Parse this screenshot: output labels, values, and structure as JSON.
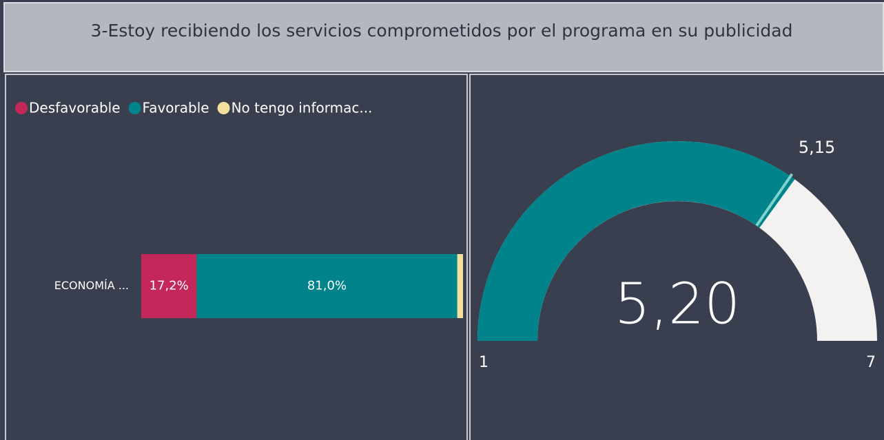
{
  "header": {
    "title": "3-Estoy recibiendo los servicios comprometidos por el programa en su publicidad"
  },
  "chart_data": [
    {
      "type": "bar",
      "orientation": "horizontal",
      "stacked": true,
      "categories": [
        "ECONOMÍA ..."
      ],
      "series": [
        {
          "name": "Desfavorable",
          "color": "#c4285a",
          "values": [
            17.2
          ],
          "value_labels": [
            "17,2%"
          ]
        },
        {
          "name": "Favorable",
          "color": "#00838a",
          "values": [
            81.0
          ],
          "value_labels": [
            "81,0%"
          ]
        },
        {
          "name": "No tengo informac...",
          "color": "#f5df9e",
          "values": [
            1.8
          ]
        }
      ],
      "xlim": [
        0,
        100
      ],
      "legend": "top-left"
    },
    {
      "type": "gauge",
      "values": [
        5.2
      ],
      "value_labels": [
        "5,20"
      ],
      "color": "#00838a",
      "target": 5.15,
      "target_label": "5,15",
      "target_color": "#7fd1cc",
      "range": [
        1,
        7
      ],
      "track_color": "#f3f2f0"
    }
  ]
}
